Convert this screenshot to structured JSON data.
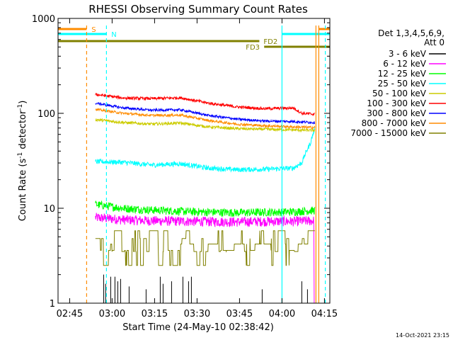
{
  "chart_data": {
    "type": "line",
    "title": "RHESSI Observing Summary Count Rates",
    "xlabel": "Start Time (24-May-10 02:38:42)",
    "ylabel_main": "Count Rate (s",
    "ylabel_sup1": "-1",
    "ylabel_mid": " detector",
    "ylabel_sup2": "-1",
    "ylabel_end": ")",
    "y_scale": "log",
    "ylim": [
      1,
      1000
    ],
    "xlim_minutes": [
      2.2,
      98.2
    ],
    "x_ticks": [
      {
        "t": 6.3,
        "label": "02:45"
      },
      {
        "t": 21.3,
        "label": "03:00"
      },
      {
        "t": 36.3,
        "label": "03:15"
      },
      {
        "t": 51.3,
        "label": "03:30"
      },
      {
        "t": 66.3,
        "label": "03:45"
      },
      {
        "t": 81.3,
        "label": "04:00"
      },
      {
        "t": 96.3,
        "label": "04:15"
      }
    ],
    "y_ticks": [
      {
        "v": 1,
        "label": "1"
      },
      {
        "v": 10,
        "label": "10"
      },
      {
        "v": 100,
        "label": "100"
      },
      {
        "v": 1000,
        "label": "1000"
      }
    ],
    "legend": {
      "position": "right",
      "header1": "Det 1,3,4,5,6,9,",
      "header2": "Att 0",
      "entries": [
        {
          "label": "3 - 6 keV",
          "color": "#000000"
        },
        {
          "label": "6 - 12 keV",
          "color": "#ff00ff"
        },
        {
          "label": "12 - 25 keV",
          "color": "#00ff00"
        },
        {
          "label": "25 - 50 keV",
          "color": "#00ffff"
        },
        {
          "label": "50 - 100 keV",
          "color": "#cccc00"
        },
        {
          "label": "100 - 300 keV",
          "color": "#ff0000"
        },
        {
          "label": "300 - 800 keV",
          "color": "#0000ff"
        },
        {
          "label": "800 - 7000 keV",
          "color": "#ff8c00"
        },
        {
          "label": "7000 - 15000 keV",
          "color": "#808000"
        }
      ]
    },
    "annotations": {
      "flags": [
        {
          "label": "S",
          "color": "#ff8c00",
          "segments": [
            [
              2.2,
              12.3
            ],
            [
              94.3,
              98.2
            ]
          ],
          "label_t": 14.0,
          "level": 0
        },
        {
          "label": "N",
          "color": "#00ffff",
          "segments": [
            [
              2.2,
              19.3
            ],
            [
              81.3,
              98.2
            ]
          ],
          "label_t": 21.0,
          "level": 1
        },
        {
          "label": "FD2",
          "color": "#808000",
          "segments": [
            [
              2.2,
              73.3
            ]
          ],
          "label_t": 74.8,
          "level": 2
        },
        {
          "label": "FD3",
          "color": "#808000",
          "segments": [
            [
              75.0,
              98.2
            ]
          ],
          "label_t": 68.5,
          "level": 3
        }
      ],
      "vlines": [
        {
          "t": 12.3,
          "color": "#ff8c00",
          "dashed": true
        },
        {
          "t": 19.3,
          "color": "#00ffff",
          "dashed": true
        },
        {
          "t": 81.3,
          "color": "#00ffff",
          "dashed": false
        },
        {
          "t": 93.3,
          "color": "#ff8c00",
          "dashed": false
        },
        {
          "t": 94.3,
          "color": "#ff8c00",
          "dashed": false
        },
        {
          "t": 96.6,
          "color": "#00ffff",
          "dashed": true
        }
      ]
    },
    "data_window_minutes": [
      15.4,
      93.0
    ],
    "series": [
      {
        "name": "3 - 6 keV",
        "color": "#000000",
        "type": "sparse_spikes",
        "spikes": [
          [
            18.3,
            2.0
          ],
          [
            19.0,
            1.6
          ],
          [
            20.8,
            1.9
          ],
          [
            22.3,
            1.9
          ],
          [
            23.3,
            1.7
          ],
          [
            24.3,
            1.8
          ],
          [
            27.3,
            1.5
          ],
          [
            33.3,
            1.4
          ],
          [
            38.3,
            1.9
          ],
          [
            39.3,
            1.6
          ],
          [
            42.3,
            1.7
          ],
          [
            46.3,
            1.9
          ],
          [
            48.3,
            1.7
          ],
          [
            49.3,
            1.9
          ],
          [
            74.3,
            1.4
          ],
          [
            88.3,
            1.7
          ],
          [
            90.3,
            1.4
          ]
        ]
      },
      {
        "name": "6 - 12 keV",
        "color": "#ff00ff",
        "keyframes": [
          [
            15.4,
            8.0
          ],
          [
            25.3,
            7.6
          ],
          [
            35.3,
            7.4
          ],
          [
            50.3,
            7.3
          ],
          [
            65.3,
            7.2
          ],
          [
            75.3,
            7.3
          ],
          [
            85.3,
            7.3
          ],
          [
            92.3,
            7.4
          ]
        ],
        "noise": 0.12,
        "drop_after": 92.6,
        "drop_to": 1.0
      },
      {
        "name": "12 - 25 keV",
        "color": "#00ff00",
        "keyframes": [
          [
            15.4,
            11.0
          ],
          [
            25.3,
            10.0
          ],
          [
            35.3,
            9.6
          ],
          [
            50.3,
            9.2
          ],
          [
            65.3,
            9.0
          ],
          [
            75.3,
            9.1
          ],
          [
            85.3,
            9.2
          ],
          [
            92.3,
            9.5
          ]
        ],
        "noise": 0.1
      },
      {
        "name": "25 - 50 keV",
        "color": "#00ffff",
        "keyframes": [
          [
            15.4,
            31.0
          ],
          [
            25.3,
            30.5
          ],
          [
            35.3,
            28.5
          ],
          [
            45.3,
            29.5
          ],
          [
            55.3,
            26.5
          ],
          [
            65.3,
            25.5
          ],
          [
            75.3,
            25.8
          ],
          [
            85.3,
            26.5
          ],
          [
            88.3,
            30.0
          ],
          [
            91.3,
            48.0
          ],
          [
            92.8,
            68.0
          ]
        ],
        "noise": 0.06
      },
      {
        "name": "50 - 100 keV",
        "color": "#cccc00",
        "keyframes": [
          [
            15.4,
            86.0
          ],
          [
            25.3,
            80.0
          ],
          [
            35.3,
            77.0
          ],
          [
            45.3,
            79.0
          ],
          [
            55.3,
            72.0
          ],
          [
            65.3,
            69.0
          ],
          [
            75.3,
            68.0
          ],
          [
            85.3,
            67.0
          ],
          [
            92.8,
            66.0
          ]
        ],
        "noise": 0.035
      },
      {
        "name": "100 - 300 keV",
        "color": "#ff0000",
        "keyframes": [
          [
            15.4,
            158.0
          ],
          [
            25.3,
            145.0
          ],
          [
            35.3,
            143.0
          ],
          [
            45.3,
            146.0
          ],
          [
            55.3,
            128.0
          ],
          [
            65.3,
            117.0
          ],
          [
            75.3,
            112.0
          ],
          [
            85.3,
            114.0
          ],
          [
            88.3,
            100.0
          ],
          [
            92.8,
            98.0
          ]
        ],
        "noise": 0.035
      },
      {
        "name": "300 - 800 keV",
        "color": "#0000ff",
        "keyframes": [
          [
            15.4,
            128.0
          ],
          [
            25.3,
            114.0
          ],
          [
            35.3,
            108.0
          ],
          [
            45.3,
            109.0
          ],
          [
            55.3,
            95.0
          ],
          [
            65.3,
            87.0
          ],
          [
            75.3,
            83.0
          ],
          [
            85.3,
            82.0
          ],
          [
            92.8,
            80.0
          ]
        ],
        "noise": 0.03
      },
      {
        "name": "800 - 7000 keV",
        "color": "#ff8c00",
        "keyframes": [
          [
            15.4,
            110.0
          ],
          [
            25.3,
            100.0
          ],
          [
            35.3,
            95.0
          ],
          [
            45.3,
            96.0
          ],
          [
            55.3,
            84.0
          ],
          [
            65.3,
            77.0
          ],
          [
            75.3,
            74.0
          ],
          [
            85.3,
            72.0
          ],
          [
            92.8,
            71.0
          ]
        ],
        "noise": 0.03
      },
      {
        "name": "7000 - 15000 keV",
        "color": "#808000",
        "type": "step",
        "levels": [
          4.8,
          3.6,
          5.8,
          4.2,
          3.5,
          2.5
        ],
        "keyframes": [
          [
            15.4,
            3.6
          ],
          [
            25.3,
            4.0
          ],
          [
            35.3,
            5.0
          ],
          [
            45.3,
            4.6
          ],
          [
            55.3,
            3.8
          ],
          [
            65.3,
            4.1
          ],
          [
            75.3,
            4.5
          ],
          [
            85.3,
            4.0
          ],
          [
            92.3,
            4.4
          ]
        ],
        "noise": 0.12
      }
    ]
  },
  "footer": {
    "timestamp": "14-Oct-2021 23:15"
  }
}
